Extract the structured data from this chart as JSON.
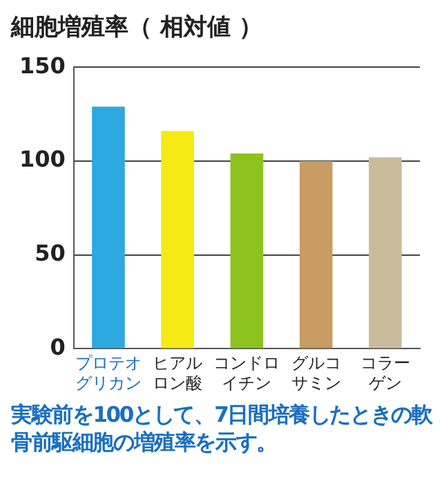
{
  "chart_data": {
    "type": "bar",
    "title": "細胞増殖率（ 相対値 ）",
    "categories": [
      "プロテオグリカン",
      "ヒアルロン酸",
      "コンドロイチン",
      "グルコサミン",
      "コラーゲン"
    ],
    "values": [
      129,
      116,
      104,
      100,
      102
    ],
    "colors": [
      "#2ea8e0",
      "#f5ea14",
      "#8dc21f",
      "#c89c62",
      "#c9bc9c"
    ],
    "ylim": [
      0,
      150
    ],
    "yticks": [
      0,
      50,
      100,
      150
    ],
    "grid": "y",
    "annotations": [
      "実験前を100として、7日間培養したときの軟骨前駆細胞の増殖率を示す。"
    ]
  }
}
